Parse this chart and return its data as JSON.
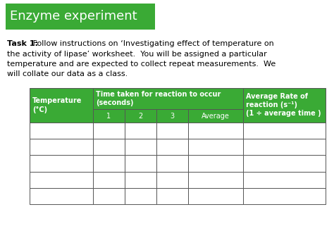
{
  "title": "Enzyme experiment",
  "title_bg_color": "#3aaa35",
  "title_text_color": "#ffffff",
  "title_fontsize": 13,
  "body_bg_color": "#ffffff",
  "task_bold": "Task 1:",
  "task_text": "Follow instructions on ‘Investigating effect of temperature on the activity of lipase’ worksheet.  You will be assigned a particular temperature and are expected to collect repeat measurements.  We will collate our data as a class.",
  "task_fontsize": 8.0,
  "table_header_bg": "#3aaa35",
  "table_header_text_color": "#ffffff",
  "table_border_color": "#3aaa35",
  "table_border_color2": "#555555",
  "table_cell_bg": "#ffffff",
  "table_cell_text_color": "#000000",
  "col0_header_line1": "Temperature",
  "col0_header_line2": "(°C)",
  "col_mid_header_line1": "Time taken for reaction to occur",
  "col_mid_header_line2": "(seconds)",
  "col_last_header_line1": "Average Rate of",
  "col_last_header_line2": "reaction (s⁻¹)",
  "col_last_header_line3": "(1 ÷ average time )",
  "sub_headers": [
    "1",
    "2",
    "3",
    "Average"
  ],
  "num_data_rows": 5,
  "fig_width": 4.74,
  "fig_height": 3.55,
  "dpi": 100
}
